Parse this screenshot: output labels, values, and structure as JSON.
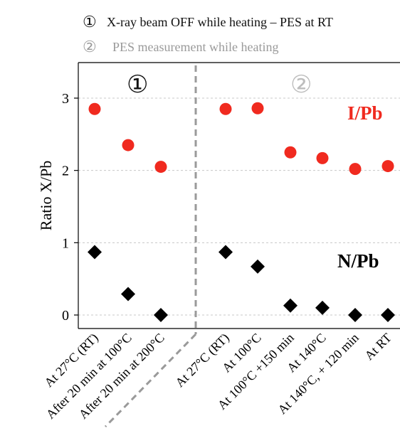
{
  "legend": [
    {
      "marker": "①",
      "text": "X-ray beam OFF while heating – PES at RT",
      "color": "#111111"
    },
    {
      "marker": "②",
      "text": "PES measurement while heating",
      "color": "#9a9a9a"
    }
  ],
  "panel_markers": {
    "left": "①",
    "right": "②"
  },
  "colors": {
    "iodine": "#f02a1f",
    "nitrogen": "#000000",
    "divider": "#9a9a9a",
    "grid": "#c8c8c8"
  },
  "chart_data": {
    "type": "scatter",
    "title": "",
    "xlabel": "",
    "ylabel": "Ratio X/Pb",
    "ylim": [
      -0.15,
      3.5
    ],
    "yticks": [
      0,
      1,
      2,
      3
    ],
    "grid": true,
    "categories": [
      "At 27°C (RT)",
      "After 20 min at 100°C",
      "After 20 min at 200°C",
      "At 27°C (RT)",
      "At 100°C",
      "At 100°C +150 min",
      "At 140°C",
      "At 140°C, + 120 min",
      "At RT"
    ],
    "series": [
      {
        "name": "I/Pb",
        "marker": "circle",
        "values": [
          2.85,
          2.35,
          2.05,
          2.85,
          2.86,
          2.25,
          2.17,
          2.02,
          2.06
        ]
      },
      {
        "name": "N/Pb",
        "marker": "diamond",
        "values": [
          0.87,
          0.29,
          0.0,
          0.87,
          0.67,
          0.13,
          0.1,
          0.0,
          0.0
        ]
      }
    ],
    "groups": [
      {
        "label": "①",
        "categories": [
          0,
          1,
          2
        ]
      },
      {
        "label": "②",
        "categories": [
          3,
          4,
          5,
          6,
          7,
          8
        ]
      }
    ]
  }
}
